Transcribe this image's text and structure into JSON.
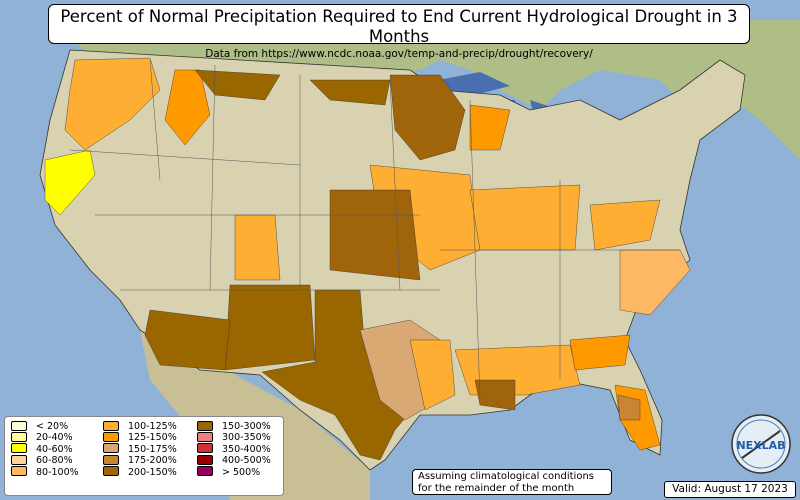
{
  "title": "Percent of Normal Precipitation Required to End Current Hydrological Drought in 3 Months",
  "subtitle": "Data from https://www.ncdc.noaa.gov/temp-and-precip/drought/recovery/",
  "legend": [
    {
      "label": "< 20%",
      "color": "#ffffd4"
    },
    {
      "label": "20-40%",
      "color": "#ffff99"
    },
    {
      "label": "40-60%",
      "color": "#ffff00"
    },
    {
      "label": "60-80%",
      "color": "#fdd49e"
    },
    {
      "label": "80-100%",
      "color": "#fdb863"
    },
    {
      "label": "100-125%",
      "color": "#fdae33"
    },
    {
      "label": "125-150%",
      "color": "#ff9900"
    },
    {
      "label": "150-175%",
      "color": "#d9a873"
    },
    {
      "label": "175-200%",
      "color": "#c88533"
    },
    {
      "label": "200-150%",
      "color": "#a0650a"
    },
    {
      "label": "150-300%",
      "color": "#996600"
    },
    {
      "label": "300-350%",
      "color": "#f08080"
    },
    {
      "label": "350-400%",
      "color": "#cc3333"
    },
    {
      "label": "400-500%",
      "color": "#990000"
    },
    {
      "label": "> 500%",
      "color": "#99005c"
    }
  ],
  "assumption_lines": [
    "Assuming climatological conditions",
    "for the remainder of the month"
  ],
  "valid": "Valid: August 17 2023",
  "logo_text": "NEXLAB",
  "colors": {
    "ocean": "#8fb2d6",
    "land": "#d9d2b0",
    "lakes": "#4a6fb0"
  }
}
